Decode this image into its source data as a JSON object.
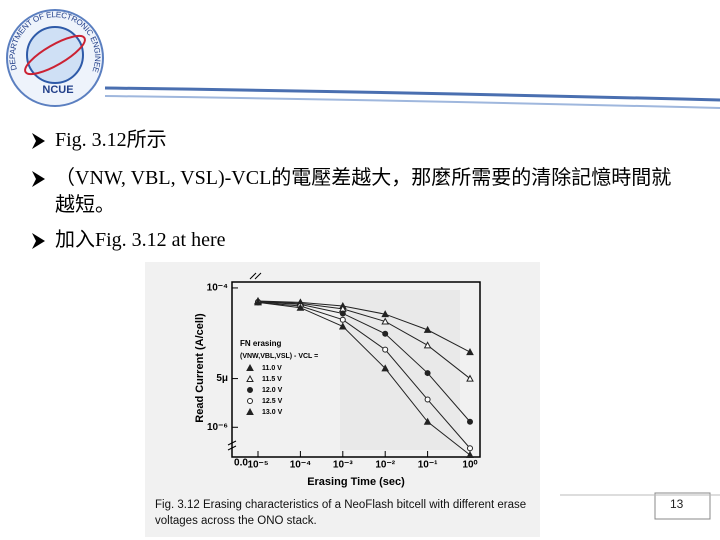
{
  "logo": {
    "ring_text": "DEPARTMENT OF ELECTRONIC ENGINEERING",
    "name": "NCUE"
  },
  "bullets": [
    "Fig. 3.12所示",
    "（VNW, VBL, VSL)-VCL的電壓差越大，那麼所需要的清除記憶時間就越短。",
    "加入Fig. 3.12 at here"
  ],
  "figure": {
    "chart": {
      "type": "line",
      "x": [
        1e-05,
        0.0001,
        0.001,
        0.01,
        0.1,
        1
      ],
      "xlim": [
        1e-05,
        1
      ],
      "xticks": [
        {
          "value": 1e-05,
          "label": "10⁻⁵"
        },
        {
          "value": 0.0001,
          "label": "10⁻⁴"
        },
        {
          "value": 0.001,
          "label": "10⁻³"
        },
        {
          "value": 0.01,
          "label": "10⁻²"
        },
        {
          "value": 0.1,
          "label": "10⁻¹"
        },
        {
          "value": 1,
          "label": "10⁰"
        }
      ],
      "x_origin_label": "0.0",
      "ylim": [
        4e-07,
        0.00013
      ],
      "yticks": [
        {
          "value": 0.0001,
          "label": "10⁻⁴"
        },
        {
          "value": 5e-06,
          "label": "5μ"
        },
        {
          "value": 1e-06,
          "label": "10⁻⁶"
        }
      ],
      "log_x": true,
      "log_y": true,
      "xlabel": "Erasing Time (sec)",
      "ylabel": "Read Current (A/cell)",
      "legend_title": "FN erasing",
      "legend_subtitle": "(VNW,VBL,VSL) - VCL =",
      "series": [
        {
          "name": "11.0 V",
          "color": "#222222",
          "values": [
            6.5e-05,
            6.2e-05,
            5.5e-05,
            4.2e-05,
            2.5e-05,
            1.2e-05
          ]
        },
        {
          "name": "11.5 V",
          "color": "#222222",
          "values": [
            6.4e-05,
            6e-05,
            5e-05,
            3.3e-05,
            1.5e-05,
            5e-06
          ]
        },
        {
          "name": "12.0 V",
          "color": "#222222",
          "values": [
            6.3e-05,
            5.8e-05,
            4.3e-05,
            2.2e-05,
            6e-06,
            1.2e-06
          ]
        },
        {
          "name": "12.5 V",
          "color": "#222222",
          "values": [
            6.2e-05,
            5.5e-05,
            3.5e-05,
            1.3e-05,
            2.5e-06,
            5e-07
          ]
        },
        {
          "name": "13.0 V",
          "color": "#222222",
          "values": [
            6.2e-05,
            5.2e-05,
            2.8e-05,
            7e-06,
            1.2e-06,
            4e-07
          ]
        }
      ]
    },
    "caption": "Fig. 3.12 Erasing characteristics of a NeoFlash bitcell with different erase voltages across the ONO stack."
  },
  "page_number": "13"
}
